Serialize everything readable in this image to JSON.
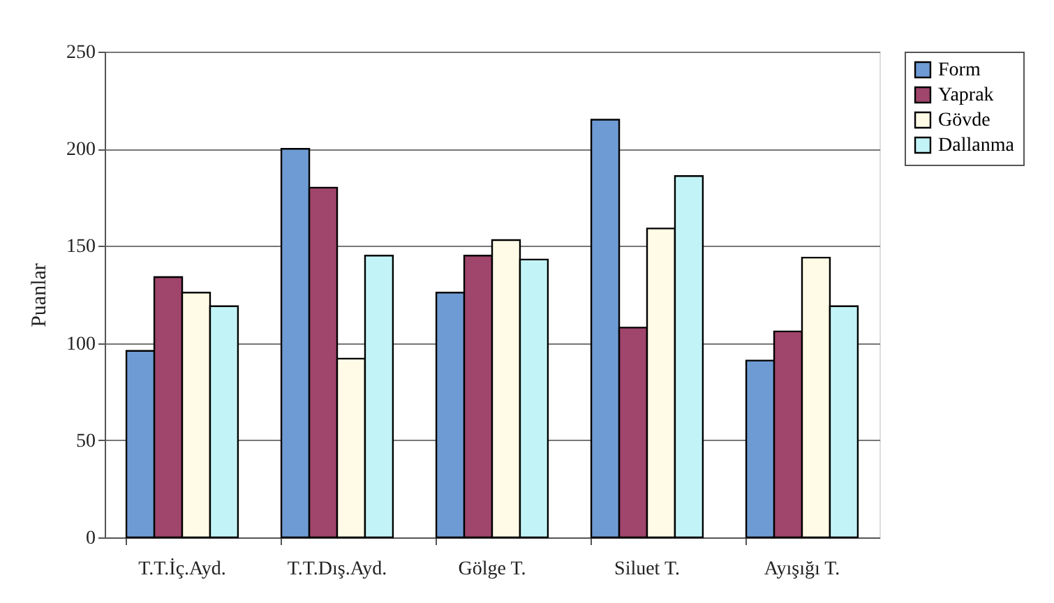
{
  "chart_data": {
    "type": "bar",
    "ylabel": "Puanlar",
    "categories": [
      "T.T.İç.Ayd.",
      "T.T.Dış.Ayd.",
      "Gölge T.",
      "Siluet T.",
      "Ayışığı T."
    ],
    "series": [
      {
        "name": "Form",
        "color": "#6f9bd4",
        "values": [
          96,
          200,
          126,
          215,
          91
        ]
      },
      {
        "name": "Yaprak",
        "color": "#a0456b",
        "values": [
          134,
          180,
          145,
          108,
          106
        ]
      },
      {
        "name": "Gövde",
        "color": "#fffbe6",
        "values": [
          126,
          92,
          153,
          159,
          144
        ]
      },
      {
        "name": "Dallanma",
        "color": "#c2f4f7",
        "values": [
          119,
          145,
          143,
          186,
          119
        ]
      }
    ],
    "ylim": [
      0,
      250
    ],
    "yticks": [
      0,
      50,
      100,
      150,
      200,
      250
    ],
    "grid": "y",
    "legend": "right"
  }
}
